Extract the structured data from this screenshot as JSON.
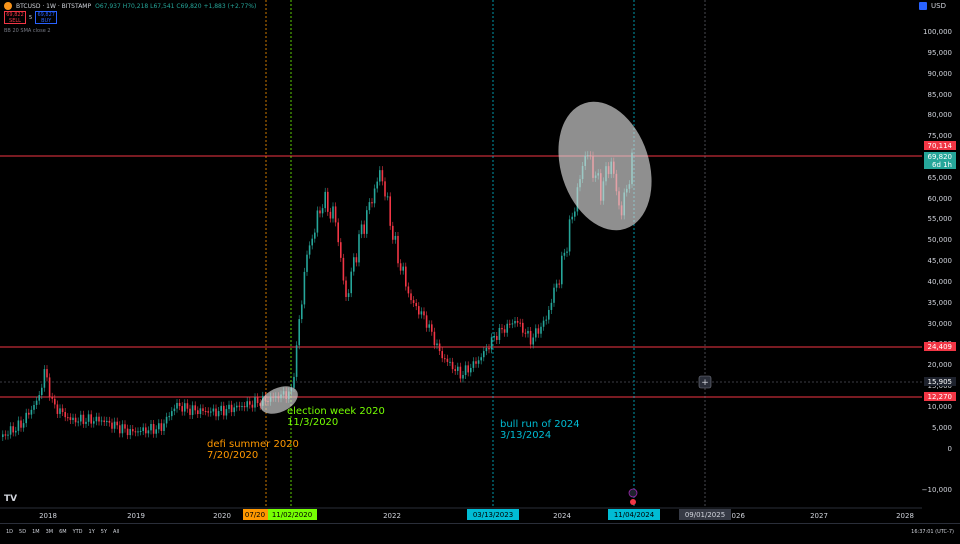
{
  "header": {
    "symbol": "BTCUSD · 1W · BITSTAMP",
    "ohlc": "O67,937 H70,218 L67,541 C69,820 +1,883 (+2.77%)",
    "sell_price": "69,822",
    "sell_label": "SELL",
    "spread": "5",
    "buy_price": "69,827",
    "buy_label": "BUY",
    "indicator": "BB 20 SMA close 2",
    "currency": "USD"
  },
  "price_axis": [
    "100,000",
    "95,000",
    "90,000",
    "85,000",
    "80,000",
    "75,000",
    "70,000",
    "65,000",
    "60,000",
    "55,000",
    "50,000",
    "45,000",
    "40,000",
    "35,000",
    "30,000",
    "25,000",
    "20,000",
    "15,000",
    "10,000",
    "5,000",
    "0",
    "−10,000"
  ],
  "time_axis": {
    "years": [
      "2018",
      "2019",
      "2020",
      "2022",
      "2024",
      "2026",
      "2027",
      "2028"
    ],
    "highlighted": [
      {
        "label": "07/20",
        "color": "#ff9800"
      },
      {
        "label": "11/02/2020",
        "color": "#4caf50"
      },
      {
        "label": "03/13/2023",
        "color": "#00bcd4"
      },
      {
        "label": "11/04/2024",
        "color": "#00bcd4"
      },
      {
        "label": "09/01/2025",
        "color": "#d1d4dc"
      }
    ]
  },
  "price_labels": [
    {
      "label": "70,114",
      "color": "#f23645"
    },
    {
      "label": "69,820",
      "color": "#26a69a"
    },
    {
      "label": "6d 1h",
      "color": "#26a69a"
    },
    {
      "label": "24,409",
      "color": "#f23645"
    },
    {
      "label": "15,905",
      "color": "#1e222d"
    },
    {
      "label": "12,270",
      "color": "#f23645"
    }
  ],
  "annotations": [
    {
      "text": "election week 2020",
      "color": "#76ff03"
    },
    {
      "text": "11/3/2020",
      "color": "#76ff03"
    },
    {
      "text": "defi summer 2020",
      "color": "#ff9800"
    },
    {
      "text": "7/20/2020",
      "color": "#ff9800"
    },
    {
      "text": "bull run of 2024",
      "color": "#00bcd4"
    },
    {
      "text": "3/13/2024",
      "color": "#00bcd4"
    }
  ],
  "bottom_bar": {
    "ranges": [
      "1D",
      "5D",
      "1M",
      "3M",
      "6M",
      "YTD",
      "1Y",
      "5Y",
      "All"
    ],
    "clock": "16:37:01 (UTC-7)"
  },
  "logo": "TV"
}
